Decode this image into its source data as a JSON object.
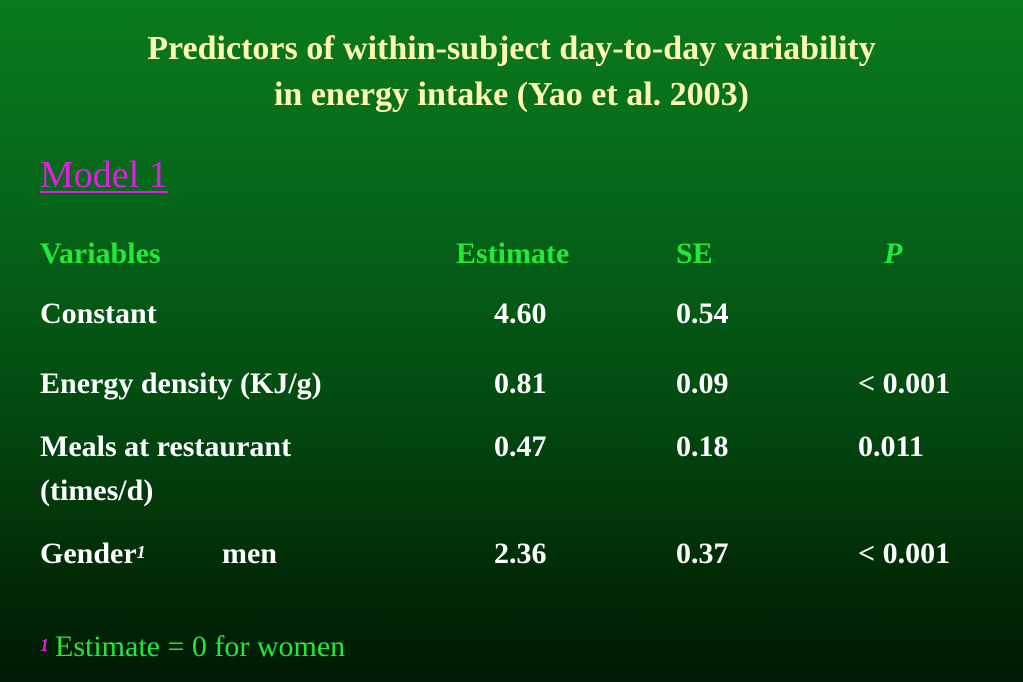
{
  "title": {
    "line1": "Predictors of within-subject day-to-day variability",
    "line2": "in energy intake (Yao et al. 2003)"
  },
  "model_label": "Model 1",
  "table": {
    "headers": {
      "variables": "Variables",
      "estimate": "Estimate",
      "se": "SE",
      "p": "P"
    },
    "rows": [
      {
        "variable": "Constant",
        "estimate": "4.60",
        "se": "0.54",
        "p": ""
      },
      {
        "variable": "Energy density (KJ/g)",
        "estimate": "0.81",
        "se": "0.09",
        "p": "< 0.001"
      },
      {
        "variable": "Meals at restaurant",
        "variable_line2": "(times/d)",
        "estimate": "0.47",
        "se": "0.18",
        "p": "0.011"
      },
      {
        "variable": "Gender",
        "variable_sup": "1",
        "sub_label": "men",
        "estimate": "2.36",
        "se": "0.37",
        "p": "< 0.001"
      }
    ]
  },
  "footnote": {
    "marker": "1",
    "text": "Estimate = 0 for women"
  },
  "colors": {
    "title": "#fff8b0",
    "model_label": "#e020e0",
    "header": "#22e83a",
    "body_text": "#ffffff",
    "background_top": "#0a7a1c",
    "background_bottom": "#001a03"
  }
}
